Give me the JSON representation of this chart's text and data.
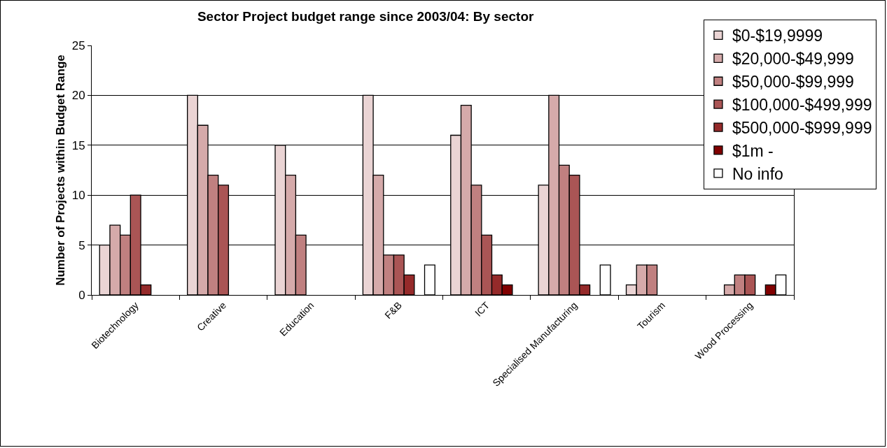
{
  "chart_data": {
    "type": "bar",
    "title": "Sector Project budget range since 2003/04: By sector",
    "ylabel": "Number of Projects within Budget Range",
    "categories": [
      "Biotechnology",
      "Creative",
      "Education",
      "F&B",
      "ICT",
      "Specialised Manufacturing",
      "Tourism",
      "Wood Processing"
    ],
    "series": [
      {
        "name": "$0-$19,9999",
        "color": "#ead4d4",
        "values": [
          5,
          20,
          15,
          20,
          16,
          11,
          1,
          null
        ]
      },
      {
        "name": "$20,000-$49,999",
        "color": "#d5aaaa",
        "values": [
          7,
          17,
          12,
          12,
          19,
          20,
          3,
          1
        ]
      },
      {
        "name": "$50,000-$99,999",
        "color": "#c08080",
        "values": [
          6,
          12,
          6,
          4,
          11,
          13,
          3,
          2
        ]
      },
      {
        "name": "$100,000-$499,999",
        "color": "#aa5555",
        "values": [
          10,
          11,
          null,
          4,
          6,
          12,
          null,
          2
        ]
      },
      {
        "name": "$500,000-$999,999",
        "color": "#952a2a",
        "values": [
          1,
          null,
          null,
          2,
          2,
          1,
          null,
          null
        ]
      },
      {
        "name": "$1m -",
        "color": "#800000",
        "values": [
          null,
          null,
          null,
          null,
          1,
          null,
          null,
          1
        ]
      },
      {
        "name": "No info",
        "color": "#ffffff",
        "values": [
          null,
          null,
          null,
          3,
          null,
          3,
          null,
          2
        ]
      }
    ],
    "ylim": [
      0,
      25
    ],
    "yticks": [
      0,
      5,
      10,
      15,
      20,
      25
    ],
    "grid": "y",
    "legend": "top right"
  }
}
